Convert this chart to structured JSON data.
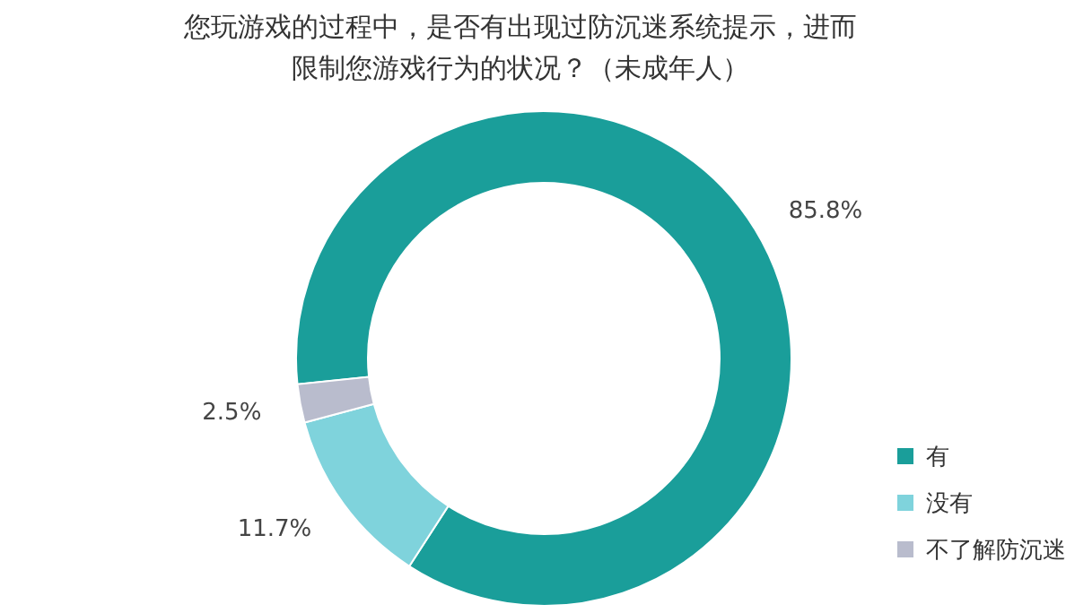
{
  "chart_data": {
    "type": "donut",
    "title": "您玩游戏的过程中，是否有出现过防沉迷系统提示，进而限制您游戏行为的状况？（未成年人）",
    "categories": [
      "有",
      "没有",
      "不了解防沉迷"
    ],
    "values": [
      85.8,
      11.7,
      2.5
    ],
    "value_labels": [
      "85.8%",
      "11.7%",
      "2.5%"
    ],
    "colors": [
      "#1a9e9a",
      "#7fd3dc",
      "#b9bccd"
    ],
    "legend": "bottom right"
  }
}
